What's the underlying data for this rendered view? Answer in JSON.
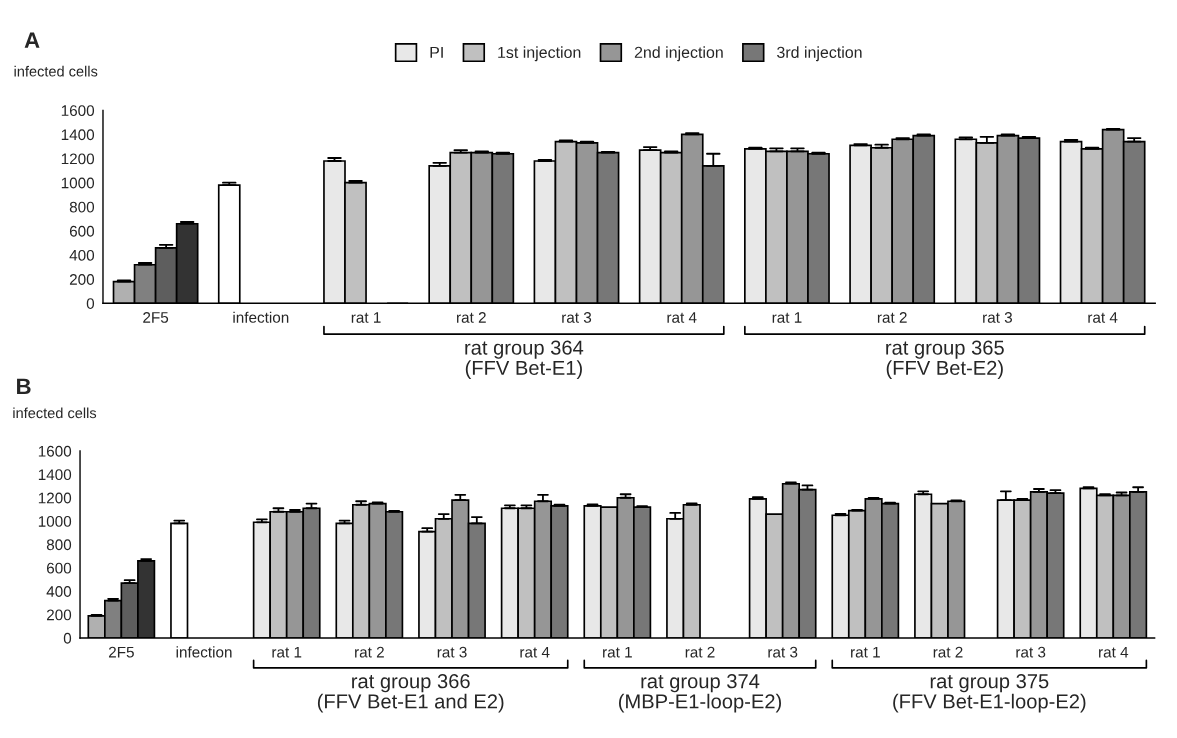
{
  "chart_data": [
    {
      "type": "bar",
      "title": "A",
      "ylabel": "infected cells",
      "legend": "top",
      "categories": [
        "2F5",
        "infection",
        "rat 1",
        "rat 2",
        "rat 3",
        "rat 4",
        "rat 1",
        "rat 2",
        "rat 3",
        "rat 4"
      ],
      "ylim": [
        0,
        1600
      ],
      "yticks": [
        0,
        200,
        400,
        600,
        800,
        1000,
        1200,
        1400,
        1600
      ],
      "series": [
        {
          "name": "PI",
          "color": "#e8e8e8",
          "colors": [
            "#b0b0b0",
            "#ffffff",
            null,
            null,
            null,
            null,
            null,
            null,
            null,
            null
          ],
          "values": [
            180,
            980,
            1180,
            1140,
            1180,
            1270,
            1280,
            1310,
            1360,
            1340
          ],
          "errors": [
            [
              180,
              190
            ],
            [
              980,
              1000
            ],
            [
              1180,
              1205
            ],
            [
              1140,
              1165
            ],
            [
              1180,
              1190
            ],
            [
              1270,
              1295
            ],
            [
              1280,
              1290
            ],
            [
              1310,
              1320
            ],
            [
              1360,
              1375
            ],
            [
              1340,
              1355
            ]
          ]
        },
        {
          "name": "1st injection",
          "color": "#c0c0c0",
          "colors": [
            "#808080",
            null,
            null,
            null,
            null,
            null,
            null,
            null,
            null,
            null
          ],
          "values": [
            320,
            null,
            1000,
            1250,
            1340,
            1250,
            1260,
            1290,
            1330,
            1280
          ],
          "errors": [
            [
              320,
              335
            ],
            null,
            [
              1000,
              1015
            ],
            [
              1250,
              1270
            ],
            [
              1340,
              1350
            ],
            [
              1250,
              1260
            ],
            [
              1260,
              1285
            ],
            [
              1290,
              1315
            ],
            [
              1330,
              1380
            ],
            [
              1280,
              1290
            ]
          ]
        },
        {
          "name": "2nd injection",
          "color": "#969696",
          "colors": [
            "#5e5e5e",
            null,
            null,
            null,
            null,
            null,
            null,
            null,
            null,
            null
          ],
          "values": [
            460,
            null,
            null,
            1250,
            1330,
            1400,
            1260,
            1360,
            1390,
            1440
          ],
          "errors": [
            [
              460,
              485
            ],
            null,
            null,
            [
              1250,
              1260
            ],
            [
              1330,
              1340
            ],
            [
              1400,
              1410
            ],
            [
              1260,
              1285
            ],
            [
              1360,
              1370
            ],
            [
              1390,
              1400
            ],
            [
              1440,
              1445
            ]
          ]
        },
        {
          "name": "3rd injection",
          "color": "#777777",
          "colors": [
            "#333333",
            null,
            null,
            null,
            null,
            null,
            null,
            null,
            null,
            null
          ],
          "values": [
            660,
            null,
            0,
            1240,
            1250,
            1140,
            1240,
            1390,
            1370,
            1340
          ],
          "errors": [
            [
              660,
              675
            ],
            null,
            null,
            [
              1240,
              1250
            ],
            [
              1250,
              1255
            ],
            [
              1140,
              1240
            ],
            [
              1240,
              1250
            ],
            [
              1390,
              1400
            ],
            [
              1370,
              1380
            ],
            [
              1340,
              1370
            ]
          ]
        }
      ],
      "annotations": [
        "rat group 364\n(FFV Bet-E1)",
        "rat group 365\n(FFV Bet-E2)"
      ]
    },
    {
      "type": "bar",
      "title": "B",
      "ylabel": "infected cells",
      "categories": [
        "2F5",
        "infection",
        "rat 1",
        "rat 2",
        "rat 3",
        "rat 4",
        "rat 1",
        "rat 2",
        "rat 3",
        "rat 1",
        "rat 2",
        "rat 3",
        "rat 4"
      ],
      "ylim": [
        0,
        1600
      ],
      "yticks": [
        0,
        200,
        400,
        600,
        800,
        1000,
        1200,
        1400,
        1600
      ],
      "series": [
        {
          "color": "#e8e8e8",
          "colors": [
            "#b0b0b0",
            "#ffffff",
            null,
            null,
            null,
            null,
            null,
            null,
            null,
            null,
            null,
            null,
            null
          ],
          "values": [
            190,
            980,
            990,
            980,
            910,
            1110,
            1130,
            1020,
            1190,
            1050,
            1230,
            1180,
            1280
          ],
          "errors": [
            [
              190,
              198
            ],
            [
              980,
              1005
            ],
            [
              990,
              1015
            ],
            [
              980,
              1005
            ],
            [
              910,
              940
            ],
            [
              1110,
              1135
            ],
            [
              1130,
              1142
            ],
            [
              1020,
              1070
            ],
            [
              1190,
              1205
            ],
            [
              1050,
              1062
            ],
            [
              1230,
              1255
            ],
            [
              1180,
              1255
            ],
            [
              1280,
              1290
            ]
          ]
        },
        {
          "color": "#c0c0c0",
          "colors": [
            "#808080",
            null,
            null,
            null,
            null,
            null,
            null,
            null,
            null,
            null,
            null,
            null,
            null
          ],
          "values": [
            320,
            null,
            1080,
            1140,
            1020,
            1110,
            1120,
            1140,
            1060,
            1090,
            1150,
            1180,
            1220
          ],
          "errors": [
            [
              320,
              335
            ],
            null,
            [
              1080,
              1110
            ],
            [
              1140,
              1170
            ],
            [
              1020,
              1060
            ],
            [
              1110,
              1135
            ],
            null,
            [
              1140,
              1152
            ],
            null,
            [
              1090,
              1095
            ],
            null,
            [
              1180,
              1190
            ],
            [
              1220,
              1230
            ]
          ]
        },
        {
          "color": "#969696",
          "colors": [
            "#5e5e5e",
            null,
            null,
            null,
            null,
            null,
            null,
            null,
            null,
            null,
            null,
            null,
            null
          ],
          "values": [
            470,
            null,
            1080,
            1150,
            1180,
            1170,
            1200,
            null,
            1320,
            1190,
            1170,
            1250,
            1220
          ],
          "errors": [
            [
              470,
              495
            ],
            null,
            [
              1080,
              1095
            ],
            [
              1150,
              1160
            ],
            [
              1180,
              1225
            ],
            [
              1170,
              1225
            ],
            [
              1200,
              1230
            ],
            null,
            [
              1320,
              1332
            ],
            [
              1190,
              1198
            ],
            [
              1170,
              1178
            ],
            [
              1250,
              1275
            ],
            [
              1220,
              1245
            ]
          ]
        },
        {
          "color": "#777777",
          "colors": [
            "#333333",
            null,
            null,
            null,
            null,
            null,
            null,
            null,
            null,
            null,
            null,
            null,
            null
          ],
          "values": [
            660,
            null,
            1110,
            1080,
            980,
            1130,
            1120,
            null,
            1270,
            1150,
            null,
            1240,
            1250
          ],
          "errors": [
            [
              660,
              675
            ],
            null,
            [
              1110,
              1150
            ],
            [
              1080,
              1088
            ],
            [
              980,
              1035
            ],
            [
              1130,
              1140
            ],
            [
              1120,
              1128
            ],
            null,
            [
              1270,
              1305
            ],
            [
              1150,
              1158
            ],
            null,
            [
              1240,
              1265
            ],
            [
              1250,
              1290
            ]
          ]
        }
      ],
      "annotations": [
        "rat group 366\n(FFV Bet-E1 and E2)",
        "rat group 374\n(MBP-E1-loop-E2)",
        "rat group 375\n(FFV Bet-E1-loop-E2)"
      ]
    }
  ]
}
